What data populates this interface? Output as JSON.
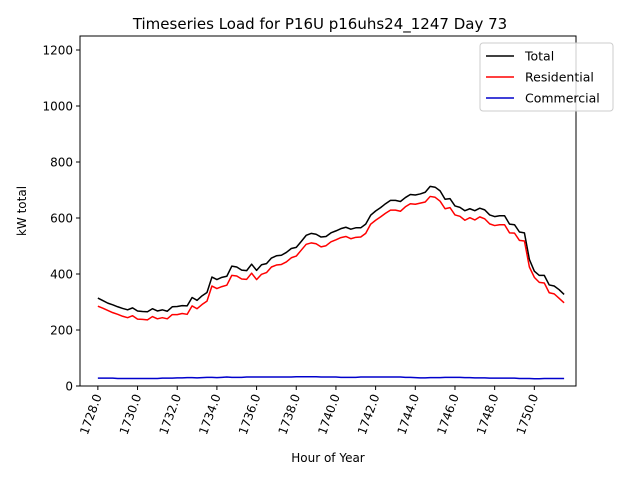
{
  "chart_data": {
    "type": "line",
    "title": "Timeseries Load for P16U p16uhs24_1247  Day 73",
    "xlabel": "Hour of Year",
    "ylabel": "kW total",
    "xlim": [
      1727.1,
      1752.1
    ],
    "ylim": [
      0,
      1250
    ],
    "xticks": [
      1728,
      1730,
      1732,
      1734,
      1736,
      1738,
      1740,
      1742,
      1744,
      1746,
      1748,
      1750
    ],
    "xtick_labels": [
      "1728.0",
      "1730.0",
      "1732.0",
      "1734.0",
      "1736.0",
      "1738.0",
      "1740.0",
      "1742.0",
      "1744.0",
      "1746.0",
      "1748.0",
      "1750.0"
    ],
    "yticks": [
      0,
      200,
      400,
      600,
      800,
      1000,
      1200
    ],
    "ytick_labels": [
      "0",
      "200",
      "400",
      "600",
      "800",
      "1000",
      "1200"
    ],
    "legend_position": "top-right",
    "x_start": 1728.0,
    "x_step": 0.25,
    "series": [
      {
        "name": "Total",
        "color": "#000000",
        "values": [
          314,
          305,
          296,
          290,
          283,
          277,
          272,
          279,
          268,
          266,
          265,
          276,
          268,
          272,
          267,
          283,
          284,
          287,
          286,
          316,
          306,
          322,
          334,
          389,
          380,
          388,
          392,
          428,
          425,
          414,
          412,
          435,
          413,
          433,
          437,
          457,
          465,
          467,
          477,
          491,
          495,
          516,
          538,
          545,
          542,
          532,
          534,
          547,
          554,
          562,
          567,
          560,
          565,
          565,
          578,
          610,
          625,
          637,
          651,
          663,
          663,
          659,
          673,
          684,
          682,
          686,
          692,
          713,
          710,
          697,
          667,
          669,
          643,
          638,
          626,
          633,
          626,
          635,
          629,
          611,
          605,
          608,
          608,
          578,
          576,
          550,
          547,
          452,
          410,
          395,
          395,
          361,
          357,
          344,
          327
        ],
        "label_text": "Total"
      },
      {
        "name": "Residential",
        "color": "#ff0000",
        "values": [
          285,
          278,
          270,
          262,
          256,
          249,
          244,
          251,
          239,
          238,
          236,
          248,
          240,
          244,
          240,
          255,
          255,
          259,
          256,
          286,
          276,
          291,
          303,
          357,
          348,
          355,
          360,
          395,
          393,
          382,
          381,
          403,
          380,
          399,
          405,
          425,
          432,
          434,
          443,
          458,
          464,
          485,
          506,
          511,
          508,
          497,
          501,
          515,
          522,
          530,
          534,
          526,
          531,
          532,
          545,
          578,
          592,
          604,
          617,
          628,
          628,
          624,
          640,
          651,
          649,
          653,
          657,
          677,
          674,
          660,
          633,
          637,
          611,
          606,
          592,
          601,
          593,
          604,
          597,
          579,
          573,
          576,
          576,
          547,
          546,
          520,
          518,
          425,
          388,
          370,
          368,
          333,
          329,
          313,
          297
        ],
        "label_text": "Residential"
      },
      {
        "name": "Commercial",
        "color": "#0000cc",
        "values": [
          28,
          28,
          28,
          28,
          27,
          27,
          27,
          27,
          27,
          27,
          27,
          27,
          27,
          28,
          28,
          28,
          29,
          29,
          30,
          30,
          29,
          30,
          31,
          31,
          30,
          31,
          32,
          31,
          31,
          31,
          32,
          32,
          32,
          32,
          32,
          32,
          32,
          32,
          32,
          32,
          33,
          33,
          33,
          33,
          33,
          32,
          32,
          32,
          32,
          31,
          31,
          31,
          31,
          32,
          32,
          32,
          32,
          32,
          32,
          32,
          32,
          32,
          31,
          31,
          30,
          29,
          29,
          30,
          30,
          30,
          31,
          31,
          31,
          31,
          30,
          30,
          29,
          29,
          29,
          28,
          28,
          28,
          28,
          28,
          28,
          27,
          27,
          27,
          26,
          26,
          27,
          27,
          27,
          27,
          27
        ],
        "label_text": "Commercial"
      }
    ]
  }
}
